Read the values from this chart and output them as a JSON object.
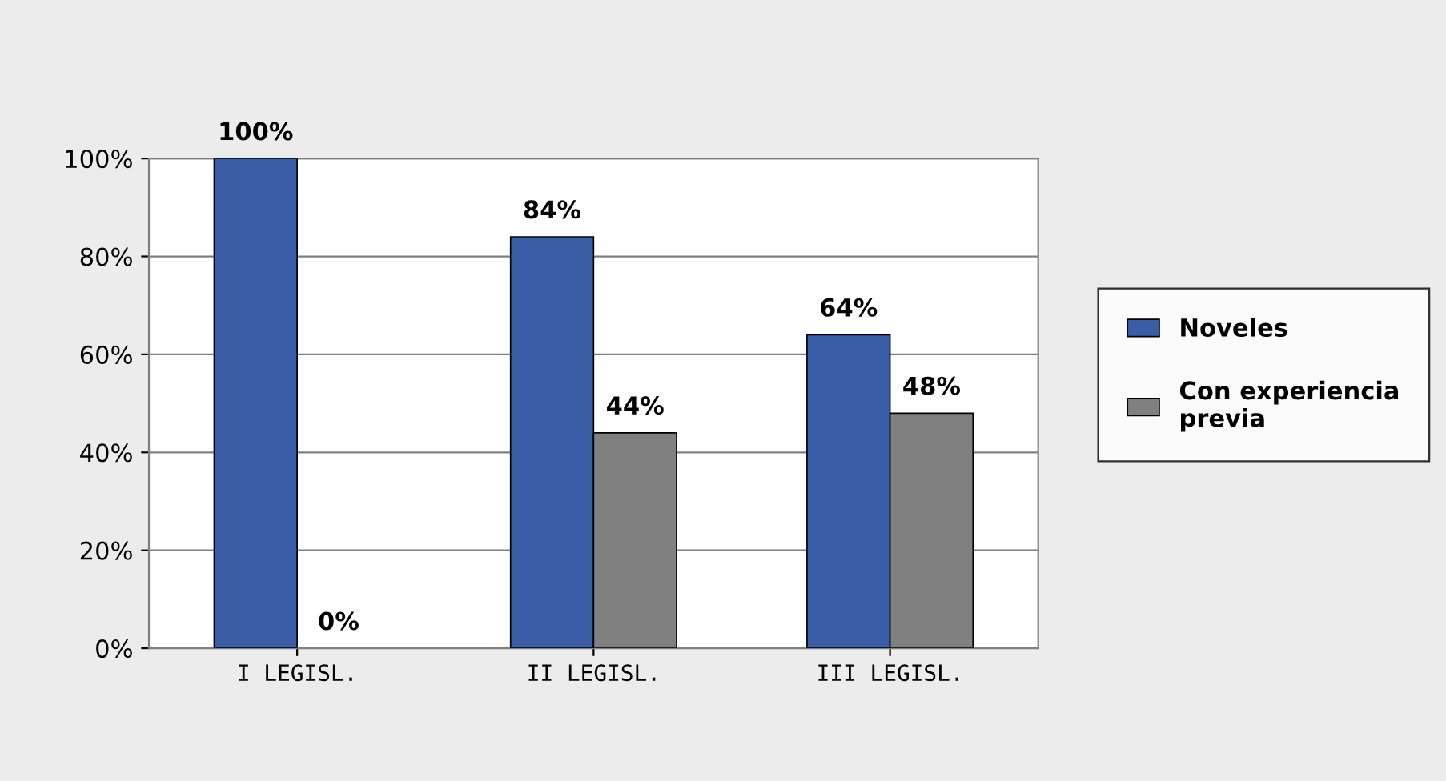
{
  "chart_data": {
    "type": "bar",
    "categories": [
      "I LEGISL.",
      "II LEGISL.",
      "III LEGISL."
    ],
    "series": [
      {
        "name": "Noveles",
        "color": "#3a5da8",
        "values": [
          100,
          84,
          64
        ],
        "value_labels": [
          "100%",
          "84%",
          "64%"
        ]
      },
      {
        "name": "Con experiencia\nprevia",
        "color": "#808080",
        "values": [
          0,
          44,
          48
        ],
        "value_labels": [
          "0%",
          "44%",
          "48%"
        ]
      }
    ],
    "ylim": [
      0,
      100
    ],
    "yticks": [
      {
        "value": 0,
        "label": "0%"
      },
      {
        "value": 20,
        "label": "20%"
      },
      {
        "value": 40,
        "label": "40%"
      },
      {
        "value": 60,
        "label": "60%"
      },
      {
        "value": 80,
        "label": "80%"
      },
      {
        "value": 100,
        "label": "100%"
      }
    ],
    "grid": "y",
    "legend": "right"
  }
}
